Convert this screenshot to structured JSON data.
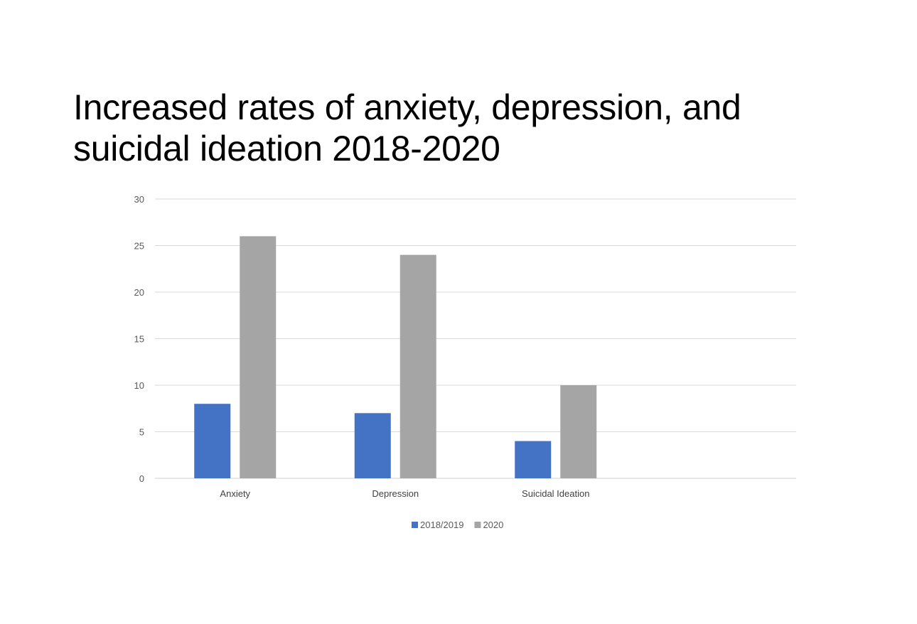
{
  "title": "Increased rates of anxiety, depression, and suicidal ideation 2018-2020",
  "chart_data": {
    "type": "bar",
    "title": "Increased rates of anxiety, depression, and suicidal ideation 2018-2020",
    "categories": [
      "Anxiety",
      "Depression",
      "Suicidal Ideation"
    ],
    "series": [
      {
        "name": "2018/2019",
        "values": [
          8,
          7,
          4
        ],
        "color": "#4472c4"
      },
      {
        "name": "2020",
        "values": [
          26,
          24,
          10
        ],
        "color": "#a5a5a5"
      }
    ],
    "ylim": [
      0,
      30
    ],
    "yticks": [
      0,
      5,
      10,
      15,
      20,
      25,
      30
    ],
    "xlabel": "",
    "ylabel": "",
    "grid": true,
    "legend": "bottom"
  }
}
